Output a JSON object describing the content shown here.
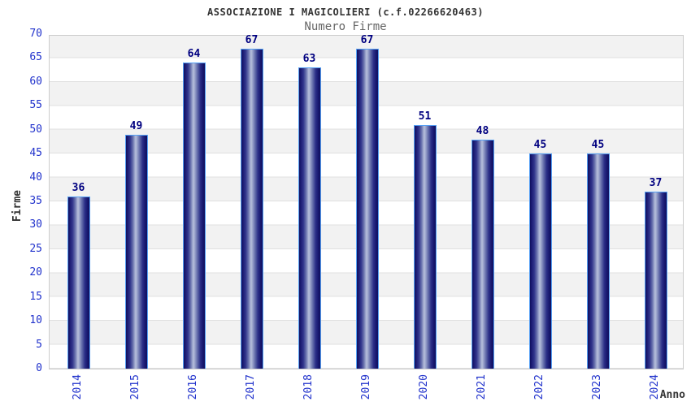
{
  "header": {
    "title": "ASSOCIAZIONE I MAGICOLIERI (c.f.02266620463)",
    "subtitle": "Numero Firme"
  },
  "chart_data": {
    "type": "bar",
    "title": "ASSOCIAZIONE I MAGICOLIERI (c.f.02266620463)",
    "subtitle": "Numero Firme",
    "categories": [
      "2014",
      "2015",
      "2016",
      "2017",
      "2018",
      "2019",
      "2020",
      "2021",
      "2022",
      "2023",
      "2024"
    ],
    "values": [
      36,
      49,
      64,
      67,
      63,
      67,
      51,
      48,
      45,
      45,
      37
    ],
    "xlabel": "Anno",
    "ylabel": "Firme",
    "ylim": [
      0,
      70
    ],
    "ytick_step": 5,
    "yticks": [
      0,
      5,
      10,
      15,
      20,
      25,
      30,
      35,
      40,
      45,
      50,
      55,
      60,
      65,
      70
    ],
    "grid": "horizontal-bands-every-5",
    "legend": "none",
    "colors": {
      "bar_dark": "#10105e",
      "bar_highlight": "#b7bfda",
      "bar_border": "#55a0f5",
      "value_label": "#000080",
      "tick_label": "#2233cc",
      "band_gray": "#f2f2f2",
      "gridline": "#e0e0e0",
      "plot_border": "#cccccc",
      "title": "#333333",
      "subtitle": "#666666"
    }
  }
}
